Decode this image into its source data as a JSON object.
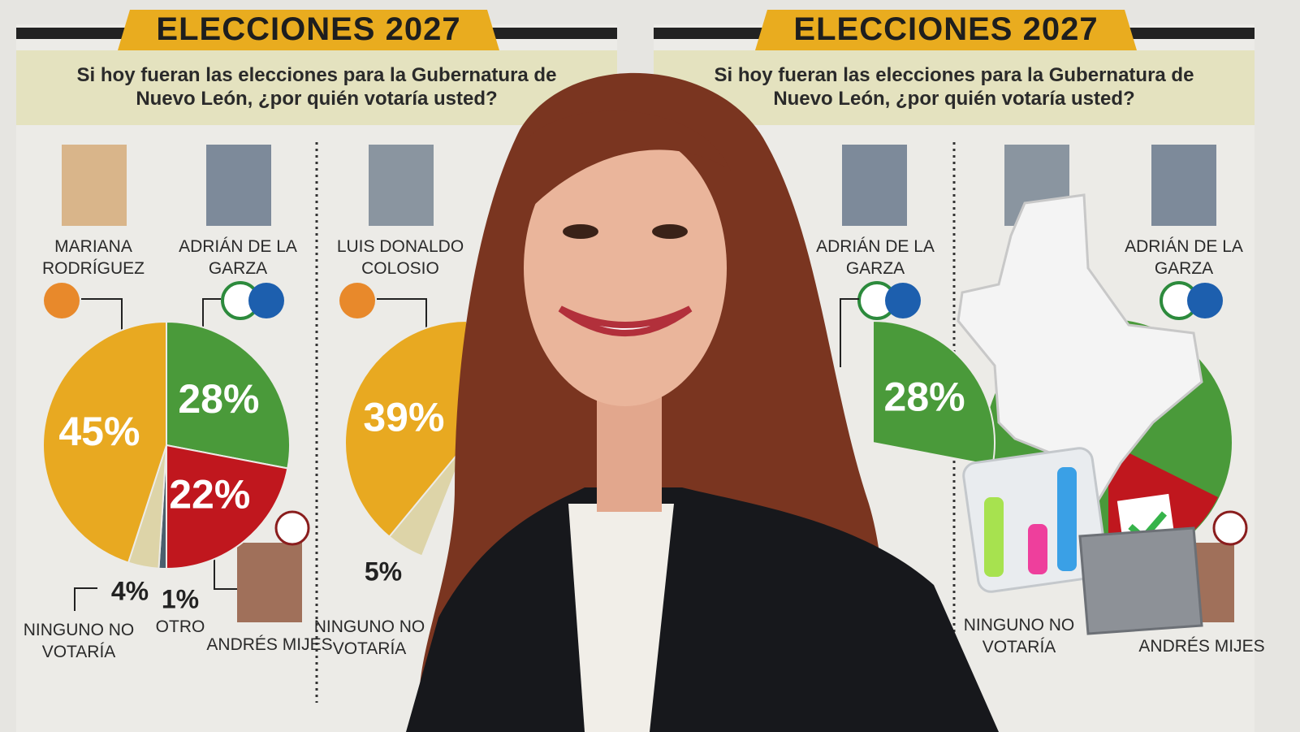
{
  "panels": [
    {
      "title": "ELECCIONES 2027",
      "question": "Si hoy fueran las elecciones para la Gubernatura de Nuevo León, ¿por quién votaría usted?"
    },
    {
      "title": "ELECCIONES 2027",
      "question": "Si hoy fueran las elecciones para la Gubernatura de Nuevo León, ¿por quién votaría usted?"
    }
  ],
  "chart_data": [
    {
      "type": "pie",
      "categories": [
        "ADRIÁN DE LA GARZA",
        "ANDRÉS MIJES",
        "OTRO",
        "NINGUNO NO VOTARÍA",
        "MARIANA RODRÍGUEZ"
      ],
      "values": [
        28,
        22,
        1,
        4,
        45
      ],
      "value_labels": [
        "28%",
        "22%",
        "1%",
        "4%",
        "45%"
      ],
      "colors": [
        "#4a9a3a",
        "#c0171e",
        "#4a5f6e",
        "#ddd4a8",
        "#e8a921"
      ]
    },
    {
      "type": "pie",
      "categories": [
        "NINGUNO NO VOTARÍA",
        "LUIS DONALDO COLOSIO"
      ],
      "values": [
        5,
        39
      ],
      "value_labels": [
        "5%",
        "39%"
      ],
      "colors": [
        "#ddd4a8",
        "#e8a921"
      ]
    },
    {
      "type": "pie",
      "categories": [
        "ADRIÁN DE LA GARZA"
      ],
      "values": [
        28
      ],
      "value_labels": [
        "28%"
      ],
      "colors": [
        "#4a9a3a"
      ]
    },
    {
      "type": "pie",
      "annotations": [
        "ADRIÁN DE LA GARZA",
        "NINGUNO NO VOTARÍA",
        "ANDRÉS MIJES"
      ]
    }
  ]
}
